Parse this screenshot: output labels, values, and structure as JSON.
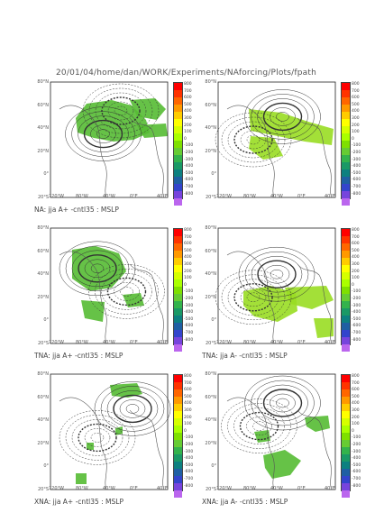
{
  "header": "20/01/04/home/dan/WORK/Experiments/NAforcing/Plots/fpath",
  "lat_labels": [
    "80°N",
    "60°N",
    "40°N",
    "20°N",
    "0°",
    "20°S"
  ],
  "lon_labels": [
    "120°W",
    "80°W",
    "40°W",
    "0°E",
    "40°E"
  ],
  "colorbar": {
    "labels": [
      "800",
      "700",
      "600",
      "500",
      "400",
      "300",
      "200",
      "100",
      "0",
      "-100",
      "-200",
      "-300",
      "-400",
      "-500",
      "-600",
      "-700",
      "-800"
    ],
    "colors": [
      "#ff0000",
      "#ff3300",
      "#ff6600",
      "#ff9900",
      "#ffcc00",
      "#ffff00",
      "#d6ff00",
      "#aaff00",
      "#7fe000",
      "#66cc33",
      "#33b34c",
      "#1a9966",
      "#0d8080",
      "#1f5fa3",
      "#3344cc",
      "#7744dd",
      "#bb66ee"
    ]
  },
  "panels": [
    {
      "caption": "NA: jja A+ -cntl35 : MSLP"
    },
    {
      "caption": ""
    },
    {
      "caption": "TNA: jja A+ -cntl35 : MSLP"
    },
    {
      "caption": "TNA: jja A- -cntl35 : MSLP"
    },
    {
      "caption": "XNA: jja A+ -cntl35 : MSLP"
    },
    {
      "caption": "XNA: jja A- -cntl35 : MSLP"
    }
  ]
}
